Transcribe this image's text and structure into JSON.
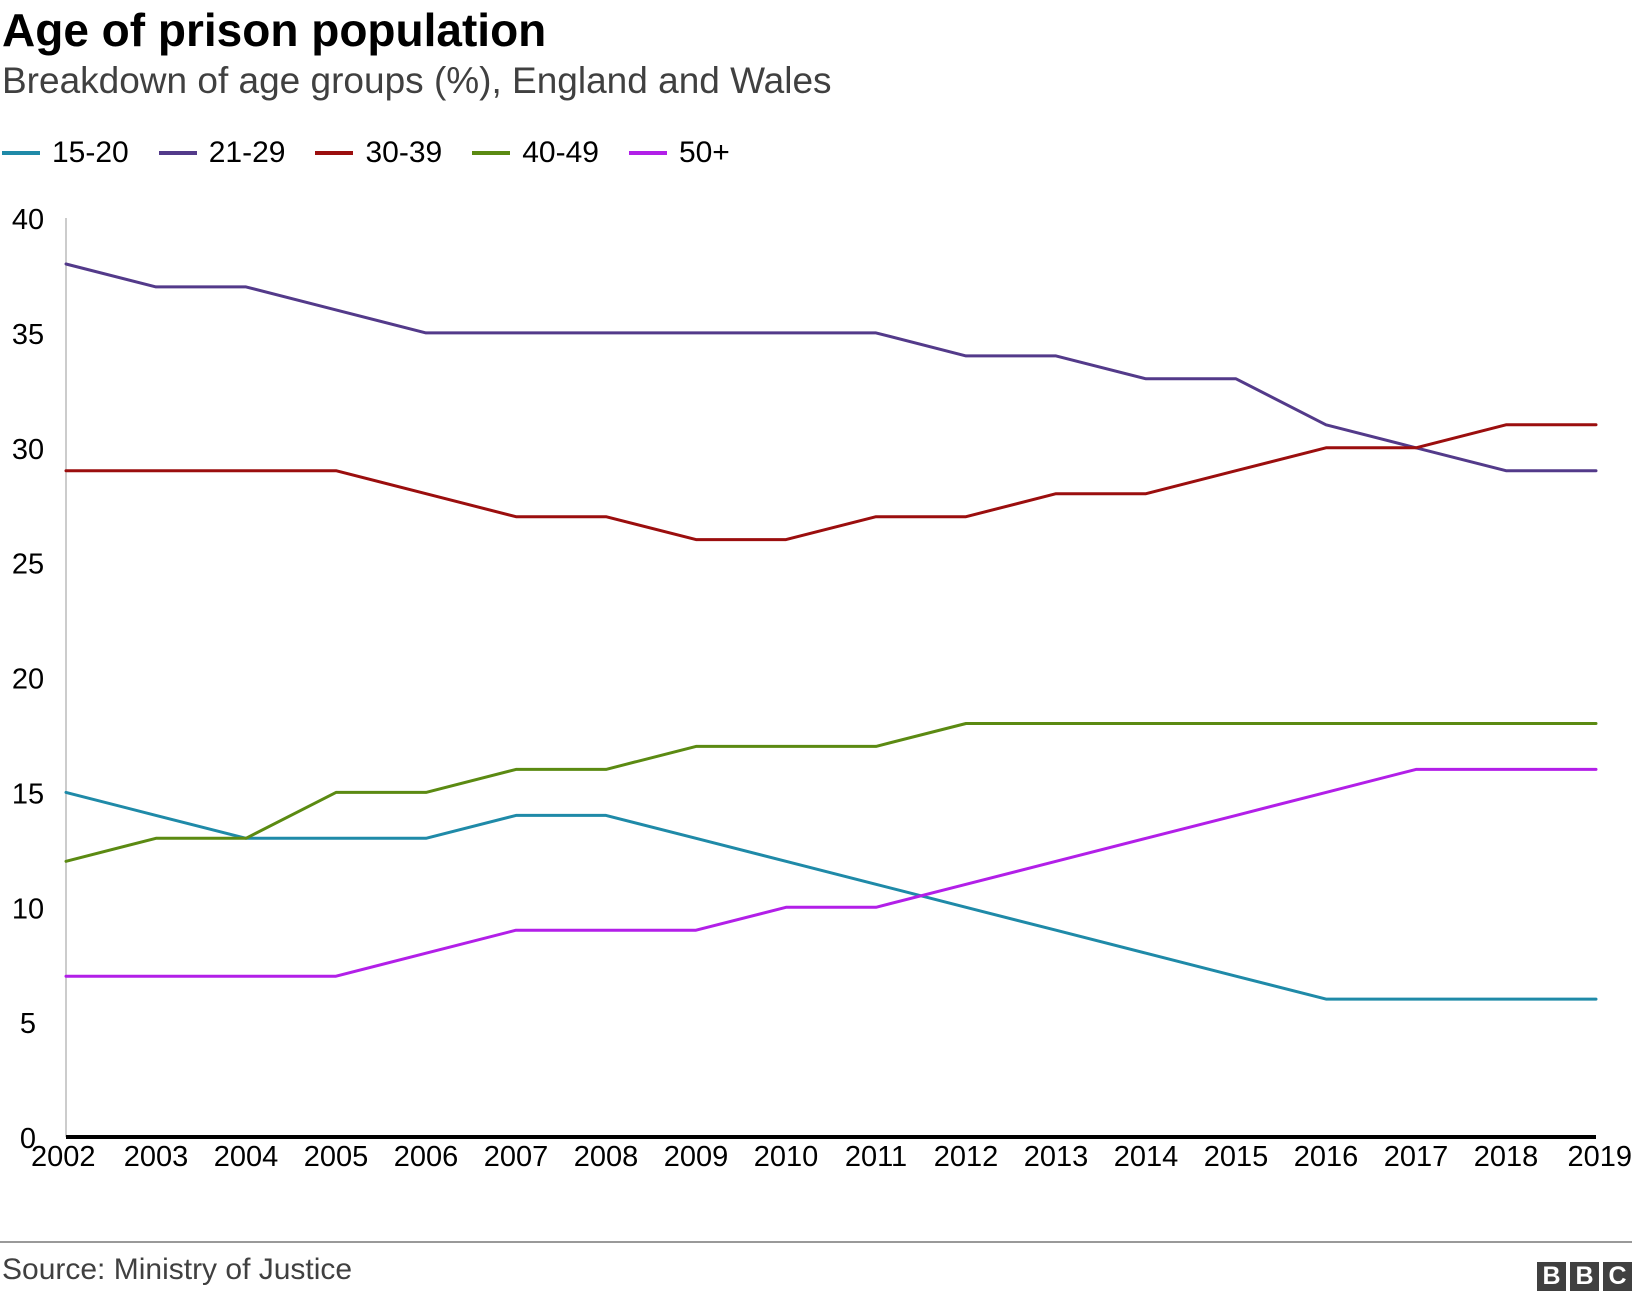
{
  "header": {
    "title": "Age of prison population",
    "subtitle": "Breakdown of age groups (%), England and Wales"
  },
  "footer": {
    "source": "Source: Ministry of Justice",
    "logo": [
      "B",
      "B",
      "C"
    ]
  },
  "chart_data": {
    "type": "line",
    "title": "Age of prison population",
    "subtitle": "Breakdown of age groups (%), England and Wales",
    "xlabel": "",
    "ylabel": "",
    "x": [
      "2002",
      "2003",
      "2004",
      "2005",
      "2006",
      "2007",
      "2008",
      "2009",
      "2010",
      "2011",
      "2012",
      "2013",
      "2014",
      "2015",
      "2016",
      "2017",
      "2018",
      "2019"
    ],
    "ylim": [
      0,
      40
    ],
    "yticks": [
      0,
      5,
      10,
      15,
      20,
      25,
      30,
      35,
      40
    ],
    "grid": false,
    "legend_position": "top-left",
    "series": [
      {
        "name": "15-20",
        "color": "#1f8aa8",
        "values": [
          15,
          14,
          13,
          13,
          13,
          14,
          14,
          13,
          12,
          11,
          10,
          9,
          8,
          7,
          6,
          6,
          6,
          6
        ]
      },
      {
        "name": "21-29",
        "color": "#533a8a",
        "values": [
          38,
          37,
          37,
          36,
          35,
          35,
          35,
          35,
          35,
          35,
          34,
          34,
          33,
          33,
          31,
          30,
          29,
          29
        ]
      },
      {
        "name": "30-39",
        "color": "#9b0e0e",
        "values": [
          29,
          29,
          29,
          29,
          28,
          27,
          27,
          26,
          26,
          27,
          27,
          28,
          28,
          29,
          30,
          30,
          31,
          31
        ]
      },
      {
        "name": "40-49",
        "color": "#5b8a12",
        "values": [
          12,
          13,
          13,
          15,
          15,
          16,
          16,
          17,
          17,
          17,
          18,
          18,
          18,
          18,
          18,
          18,
          18,
          18
        ]
      },
      {
        "name": "50+",
        "color": "#b21fe8",
        "values": [
          7,
          7,
          7,
          7,
          8,
          9,
          9,
          9,
          10,
          10,
          11,
          12,
          13,
          14,
          15,
          16,
          16,
          16
        ]
      }
    ]
  }
}
